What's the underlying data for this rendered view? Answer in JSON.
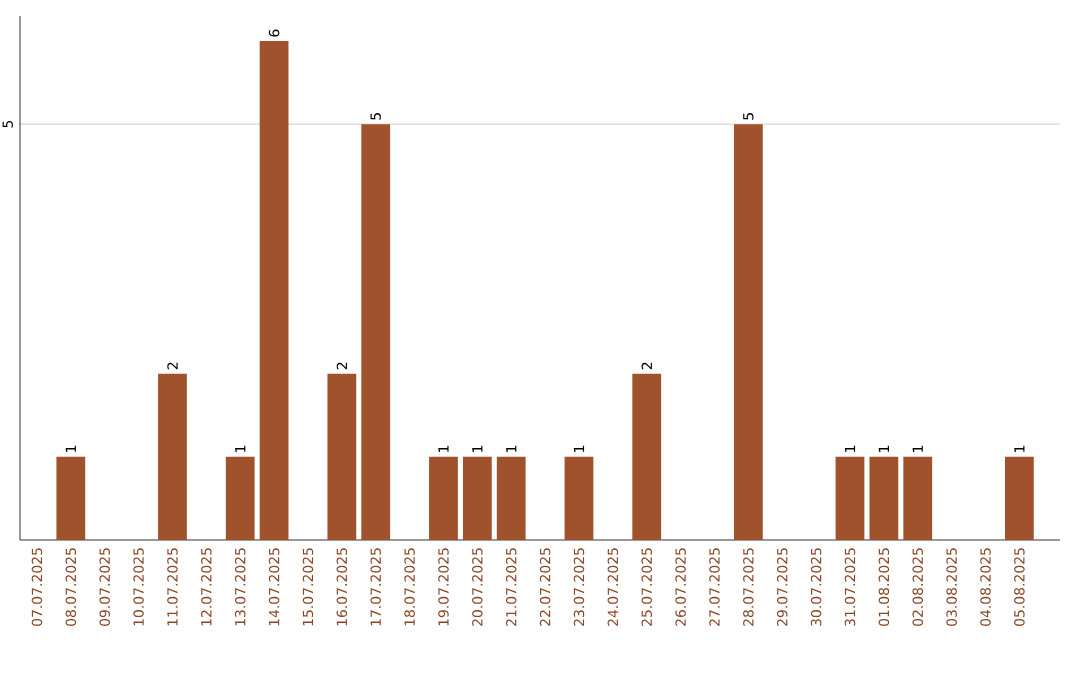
{
  "chart_data": {
    "type": "bar",
    "categories": [
      "07.07.2025",
      "08.07.2025",
      "09.07.2025",
      "10.07.2025",
      "11.07.2025",
      "12.07.2025",
      "13.07.2025",
      "14.07.2025",
      "15.07.2025",
      "16.07.2025",
      "17.07.2025",
      "18.07.2025",
      "19.07.2025",
      "20.07.2025",
      "21.07.2025",
      "22.07.2025",
      "23.07.2025",
      "24.07.2025",
      "25.07.2025",
      "26.07.2025",
      "27.07.2025",
      "28.07.2025",
      "29.07.2025",
      "30.07.2025",
      "31.07.2025",
      "01.08.2025",
      "02.08.2025",
      "03.08.2025",
      "04.08.2025",
      "05.08.2025"
    ],
    "values": [
      0,
      1,
      0,
      0,
      2,
      0,
      1,
      6,
      0,
      2,
      5,
      0,
      1,
      1,
      1,
      0,
      1,
      0,
      2,
      0,
      0,
      5,
      0,
      0,
      1,
      1,
      1,
      0,
      0,
      1
    ],
    "value_labels": [
      null,
      "1",
      null,
      null,
      "2",
      null,
      "1",
      "6",
      null,
      "2",
      "5",
      null,
      "1",
      "1",
      "1",
      null,
      "1",
      null,
      "2",
      null,
      null,
      "5",
      null,
      null,
      "1",
      "1",
      "1",
      null,
      null,
      "1"
    ],
    "color": "#a0522d",
    "ylim": [
      0,
      6.3
    ],
    "yticks": [
      5
    ],
    "grid": "y"
  }
}
